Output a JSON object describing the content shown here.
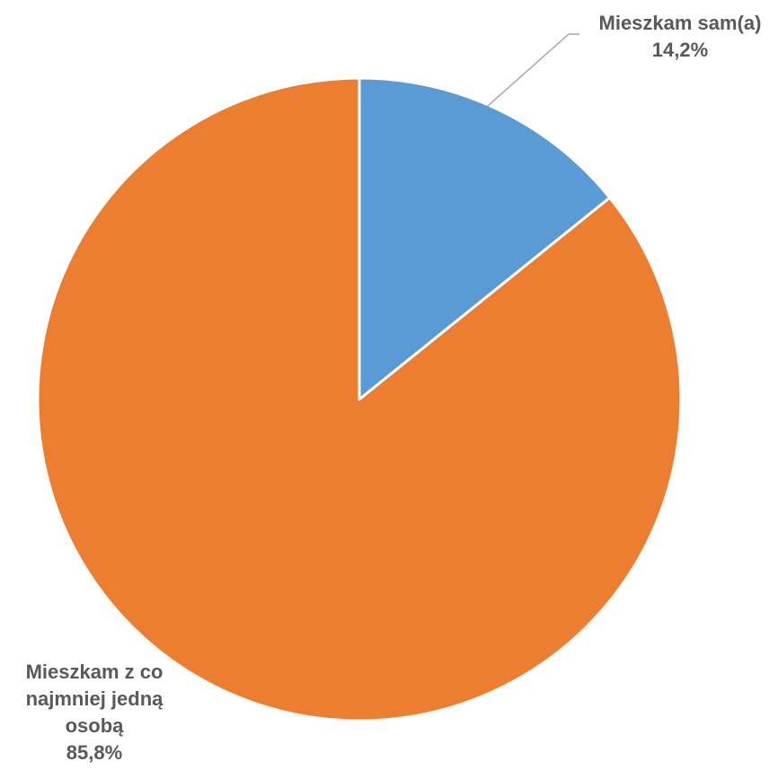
{
  "chart_data": {
    "type": "pie",
    "categories": [
      "Mieszkam sam(a)",
      "Mieszkam z co najmniej jedną osobą"
    ],
    "values": [
      14.2,
      85.8
    ],
    "value_labels": [
      "14,2%",
      "85,8%"
    ],
    "label_lines": [
      [
        "Mieszkam sam(a)"
      ],
      [
        "Mieszkam z co",
        "najmniej jedną",
        "osobą"
      ]
    ],
    "colors": [
      "#5B9BD5",
      "#ED7D31"
    ],
    "start_angle_deg": 0,
    "direction": "clockwise",
    "legend": "none",
    "title": ""
  }
}
